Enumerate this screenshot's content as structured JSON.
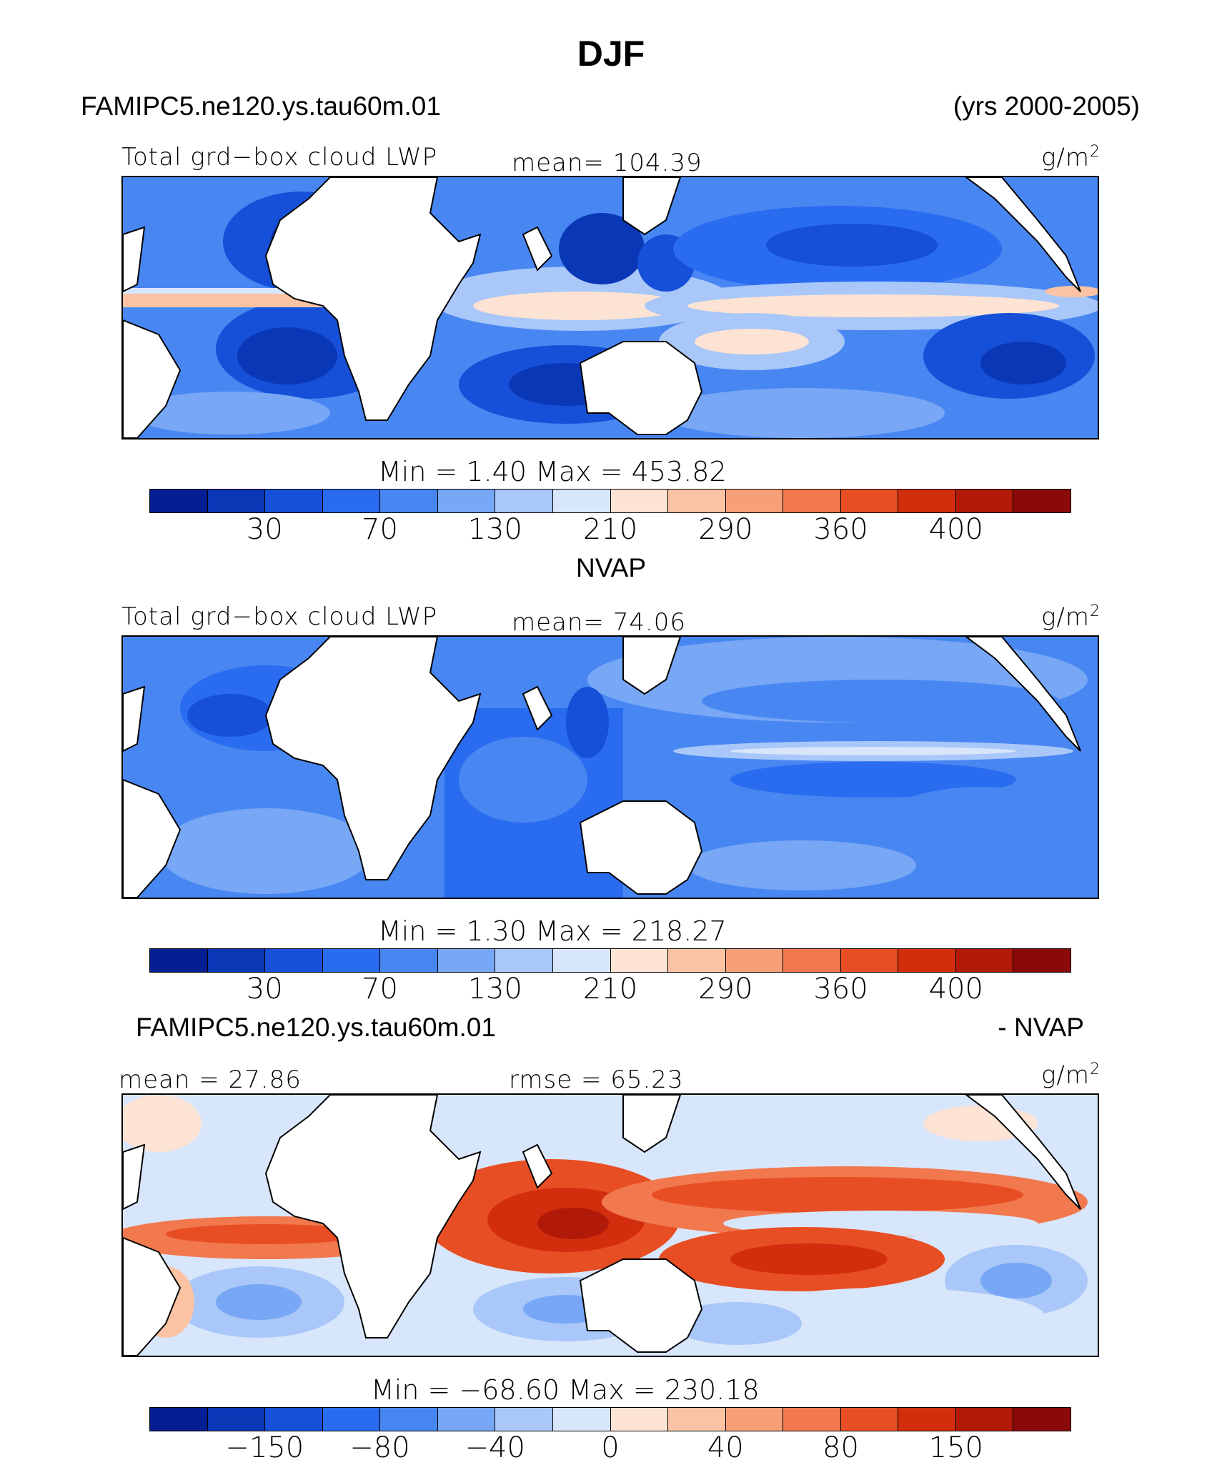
{
  "title": "DJF",
  "header": {
    "case": "FAMIPC5.ne120.ys.tau60m.01",
    "years": "(yrs 2000-2005)"
  },
  "palette": [
    "#061e94",
    "#0a37b5",
    "#1650d8",
    "#2a6cf0",
    "#4887f2",
    "#77a7f5",
    "#a9c7f8",
    "#d8e6fb",
    "#fde3d3",
    "#fbc3a4",
    "#f79f78",
    "#f2784d",
    "#e84e24",
    "#d22e0e",
    "#b11a08",
    "#8a0a0a"
  ],
  "panels": [
    {
      "id": "model",
      "left_label": "Total grd−box cloud LWP",
      "mid_label": "mean=  104.39",
      "units": "g/m",
      "units_sup": "2",
      "minmax": "Min  =     1.40  Max  =  453.82",
      "ticks": [
        "30",
        "70",
        "130",
        "210",
        "290",
        "360",
        "400"
      ]
    },
    {
      "id": "obs",
      "subtitle": "NVAP",
      "left_label": "Total grd−box cloud LWP",
      "mid_label": "mean=   74.06",
      "units": "g/m",
      "units_sup": "2",
      "minmax": "Min  =     1.30  Max  =  218.27",
      "ticks": [
        "30",
        "70",
        "130",
        "210",
        "290",
        "360",
        "400"
      ]
    },
    {
      "id": "diff",
      "subtitle_left": "FAMIPC5.ne120.ys.tau60m.01",
      "subtitle_right": "- NVAP",
      "left_label": "mean =   27.86",
      "mid_label": "rmse =   65.23",
      "units": "g/m",
      "units_sup": "2",
      "minmax": "Min  =  −68.60  Max  =  230.18",
      "ticks": [
        "−150",
        "−80",
        "−40",
        "0",
        "40",
        "80",
        "150"
      ]
    }
  ]
}
